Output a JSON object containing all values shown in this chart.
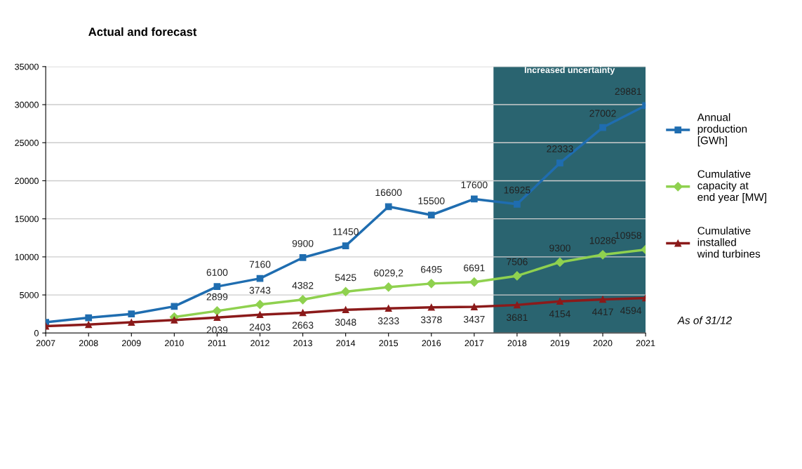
{
  "chart_data": {
    "type": "line",
    "title": "Actual and forecast",
    "x": [
      2007,
      2008,
      2009,
      2010,
      2011,
      2012,
      2013,
      2014,
      2015,
      2016,
      2017,
      2018,
      2019,
      2020,
      2021
    ],
    "series": [
      {
        "name": "Annual production [GWh]",
        "color": "#1f6db0",
        "marker": "square",
        "values": [
          1400,
          2000,
          2500,
          3500,
          6100,
          7160,
          9900,
          11450,
          16600,
          15500,
          17600,
          16925,
          22333,
          27002,
          29881
        ],
        "value_labels": [
          null,
          null,
          null,
          null,
          "6100",
          "7160",
          "9900",
          "11450",
          "16600",
          "15500",
          "17600",
          "16925",
          "22333",
          "27002",
          "29881"
        ]
      },
      {
        "name": "Cumulative capacity at end year [MW]",
        "color": "#8fd14f",
        "marker": "diamond",
        "values": [
          null,
          null,
          null,
          2100,
          2899,
          3743,
          4382,
          5425,
          6029.2,
          6495,
          6691,
          7506,
          9300,
          10286,
          10958
        ],
        "value_labels": [
          null,
          null,
          null,
          null,
          "2899",
          "3743",
          "4382",
          "5425",
          "6029,2",
          "6495",
          "6691",
          "7506",
          "9300",
          "10286",
          "10958"
        ]
      },
      {
        "name": "Cumulative installed wind turbines",
        "color": "#8b1a1a",
        "marker": "triangle",
        "values": [
          900,
          1100,
          1400,
          1700,
          2039,
          2403,
          2663,
          3048,
          3233,
          3378,
          3437,
          3681,
          4154,
          4417,
          4594
        ],
        "value_labels": [
          null,
          null,
          null,
          null,
          "2039",
          "2403",
          "2663",
          "3048",
          "3233",
          "3378",
          "3437",
          "3681",
          "4154",
          "4417",
          "4594"
        ]
      }
    ],
    "xlim": [
      2007,
      2021
    ],
    "xticks": [
      2007,
      2008,
      2009,
      2010,
      2011,
      2012,
      2013,
      2014,
      2015,
      2016,
      2017,
      2018,
      2019,
      2020,
      2021
    ],
    "ylim": [
      0,
      35000
    ],
    "yticks": [
      0,
      5000,
      10000,
      15000,
      20000,
      25000,
      30000,
      35000
    ],
    "grid": "y",
    "legend": "right",
    "line_style": "solid",
    "bands": [
      {
        "axis": "x",
        "from": 2017.45,
        "to": 2021,
        "label": "Increased uncertainty",
        "color": "#2a6470"
      }
    ],
    "annotations": [
      "As of 31/12"
    ]
  }
}
